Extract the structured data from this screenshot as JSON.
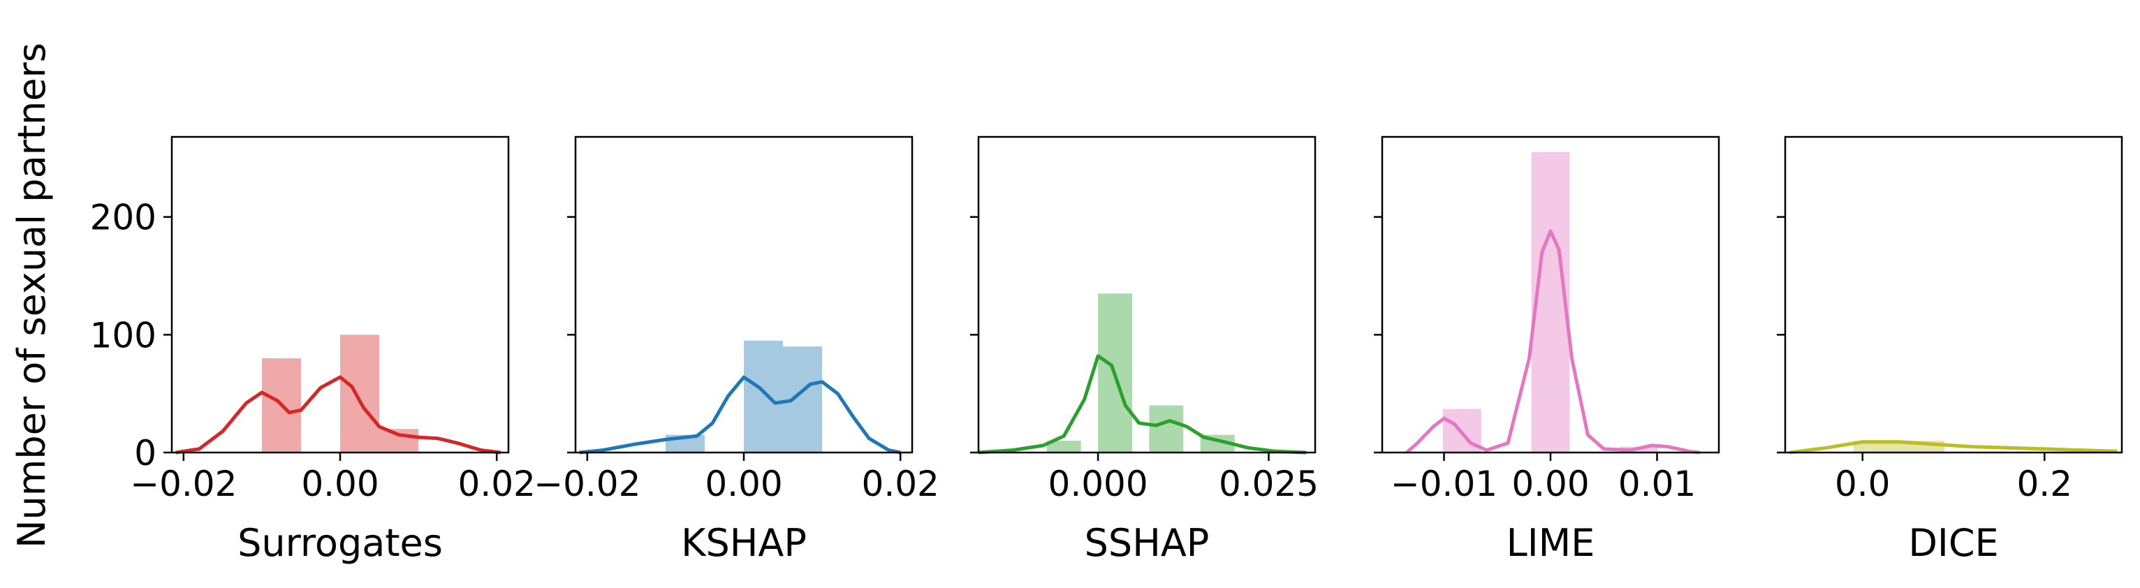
{
  "ylabel": "Number of sexual partners",
  "yticks": [
    0,
    100,
    200
  ],
  "ylim": [
    0,
    268
  ],
  "chart_data": [
    {
      "type": "bar",
      "name": "Surrogates",
      "xlabel": "Surrogates",
      "color": "#d62728",
      "xlim": [
        -0.0215,
        0.0215
      ],
      "xticks": [
        {
          "v": -0.02,
          "label": "−0.02"
        },
        {
          "v": 0.0,
          "label": "0.00"
        },
        {
          "v": 0.02,
          "label": "0.02"
        }
      ],
      "bin_width": 0.005,
      "bins": [
        {
          "x": -0.01,
          "count": 80
        },
        {
          "x": 0.0,
          "count": 100
        },
        {
          "x": 0.005,
          "count": 20
        }
      ],
      "kde": [
        [
          -0.021,
          0
        ],
        [
          -0.018,
          3
        ],
        [
          -0.015,
          18
        ],
        [
          -0.012,
          42
        ],
        [
          -0.01,
          51
        ],
        [
          -0.008,
          44
        ],
        [
          -0.0065,
          34
        ],
        [
          -0.005,
          36
        ],
        [
          -0.0025,
          55
        ],
        [
          0.0,
          64
        ],
        [
          0.0015,
          56
        ],
        [
          0.003,
          38
        ],
        [
          0.005,
          22
        ],
        [
          0.0075,
          15
        ],
        [
          0.01,
          13
        ],
        [
          0.0125,
          12
        ],
        [
          0.015,
          8
        ],
        [
          0.018,
          2
        ],
        [
          0.0205,
          0
        ]
      ]
    },
    {
      "type": "bar",
      "name": "KSHAP",
      "xlabel": "KSHAP",
      "color": "#1f77b4",
      "xlim": [
        -0.0215,
        0.0215
      ],
      "xticks": [
        {
          "v": -0.02,
          "label": "−0.02"
        },
        {
          "v": 0.0,
          "label": "0.00"
        },
        {
          "v": 0.02,
          "label": "0.02"
        }
      ],
      "bin_width": 0.005,
      "bins": [
        {
          "x": -0.01,
          "count": 15
        },
        {
          "x": 0.0,
          "count": 95
        },
        {
          "x": 0.005,
          "count": 90
        }
      ],
      "kde": [
        [
          -0.021,
          0
        ],
        [
          -0.018,
          2
        ],
        [
          -0.014,
          7
        ],
        [
          -0.01,
          11
        ],
        [
          -0.006,
          14
        ],
        [
          -0.004,
          25
        ],
        [
          -0.002,
          48
        ],
        [
          0.0,
          64
        ],
        [
          0.002,
          55
        ],
        [
          0.004,
          42
        ],
        [
          0.006,
          44
        ],
        [
          0.0085,
          58
        ],
        [
          0.01,
          60
        ],
        [
          0.012,
          50
        ],
        [
          0.014,
          30
        ],
        [
          0.016,
          12
        ],
        [
          0.0185,
          2
        ],
        [
          0.02,
          0
        ]
      ]
    },
    {
      "type": "bar",
      "name": "SSHAP",
      "xlabel": "SSHAP",
      "color": "#2ca02c",
      "xlim": [
        -0.0175,
        0.0318
      ],
      "xticks": [
        {
          "v": 0.0,
          "label": "0.000"
        },
        {
          "v": 0.025,
          "label": "0.025"
        }
      ],
      "bin_width": 0.005,
      "bins": [
        {
          "x": -0.0075,
          "count": 10
        },
        {
          "x": 0.0,
          "count": 135
        },
        {
          "x": 0.0075,
          "count": 40
        },
        {
          "x": 0.015,
          "count": 15
        }
      ],
      "kde": [
        [
          -0.0175,
          0
        ],
        [
          -0.0125,
          2
        ],
        [
          -0.008,
          6
        ],
        [
          -0.005,
          14
        ],
        [
          -0.002,
          45
        ],
        [
          0.0,
          82
        ],
        [
          0.002,
          74
        ],
        [
          0.004,
          40
        ],
        [
          0.006,
          25
        ],
        [
          0.0085,
          23
        ],
        [
          0.0105,
          27
        ],
        [
          0.013,
          22
        ],
        [
          0.0155,
          13
        ],
        [
          0.0185,
          9
        ],
        [
          0.022,
          4
        ],
        [
          0.026,
          1
        ],
        [
          0.0305,
          0
        ]
      ]
    },
    {
      "type": "bar",
      "name": "LIME",
      "xlabel": "LIME",
      "color": "#e377c2",
      "xlim": [
        -0.0158,
        0.0158
      ],
      "xticks": [
        {
          "v": -0.01,
          "label": "−0.01"
        },
        {
          "v": 0.0,
          "label": "0.00"
        },
        {
          "v": 0.01,
          "label": "0.01"
        }
      ],
      "bin_width": 0.0036,
      "bins": [
        {
          "x": -0.0101,
          "count": 37
        },
        {
          "x": -0.0018,
          "count": 255
        },
        {
          "x": 0.0065,
          "count": 5
        }
      ],
      "kde": [
        [
          -0.0135,
          0
        ],
        [
          -0.0125,
          8
        ],
        [
          -0.011,
          22
        ],
        [
          -0.01,
          29
        ],
        [
          -0.009,
          24
        ],
        [
          -0.0075,
          8
        ],
        [
          -0.006,
          2
        ],
        [
          -0.004,
          8
        ],
        [
          -0.002,
          80
        ],
        [
          -0.0008,
          170
        ],
        [
          0.0,
          188
        ],
        [
          0.0008,
          172
        ],
        [
          0.002,
          80
        ],
        [
          0.0035,
          15
        ],
        [
          0.005,
          3
        ],
        [
          0.0075,
          2
        ],
        [
          0.0095,
          6
        ],
        [
          0.011,
          5
        ],
        [
          0.013,
          1
        ],
        [
          0.014,
          0
        ]
      ]
    },
    {
      "type": "bar",
      "name": "DICE",
      "xlabel": "DICE",
      "color": "#bcbd22",
      "xlim": [
        -0.085,
        0.285
      ],
      "xticks": [
        {
          "v": 0.0,
          "label": "0.0"
        },
        {
          "v": 0.2,
          "label": "0.2"
        }
      ],
      "bin_width": 0.05,
      "bins": [
        {
          "x": -0.01,
          "count": 10
        },
        {
          "x": 0.04,
          "count": 10
        }
      ],
      "kde": [
        [
          -0.08,
          0
        ],
        [
          -0.04,
          4
        ],
        [
          0.0,
          9
        ],
        [
          0.04,
          9
        ],
        [
          0.08,
          7
        ],
        [
          0.12,
          5
        ],
        [
          0.16,
          4
        ],
        [
          0.2,
          3
        ],
        [
          0.24,
          2
        ],
        [
          0.28,
          1
        ]
      ]
    }
  ]
}
